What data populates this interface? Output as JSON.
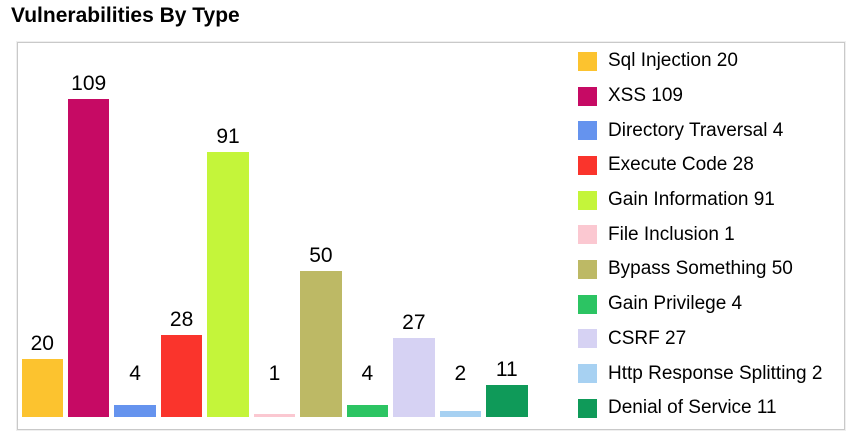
{
  "title": "Vulnerabilities By Type",
  "chart_data": {
    "type": "bar",
    "title": "Vulnerabilities By Type",
    "categories": [
      "Sql Injection",
      "XSS",
      "Directory Traversal",
      "Execute Code",
      "Gain Information",
      "File Inclusion",
      "Bypass Something",
      "Gain Privilege",
      "CSRF",
      "Http Response Splitting",
      "Denial of Service"
    ],
    "values": [
      20,
      109,
      4,
      28,
      91,
      1,
      50,
      4,
      27,
      2,
      11
    ],
    "colors": [
      "#fcc32f",
      "#c60a64",
      "#6593ee",
      "#fa342c",
      "#c4f53a",
      "#fbc8d1",
      "#bdb965",
      "#2cc463",
      "#d6d2f3",
      "#a7d1f2",
      "#0f9a59"
    ],
    "legend_entries": [
      "Sql Injection 20",
      "XSS 109",
      "Directory Traversal 4",
      "Execute Code 28",
      "Gain Information 91",
      "File Inclusion 1",
      "Bypass Something 50",
      "Gain Privilege 4",
      "CSRF 27",
      "Http Response Splitting 2",
      "Denial of Service 11"
    ],
    "value_labels_shown": true,
    "xlabel": "",
    "ylabel": "",
    "ylim": [
      0,
      128
    ],
    "grid": false,
    "legend_position": "right",
    "plot_background": "#ffffff",
    "frame_border_color": "#c9c9c9",
    "text_color": "#000000"
  }
}
